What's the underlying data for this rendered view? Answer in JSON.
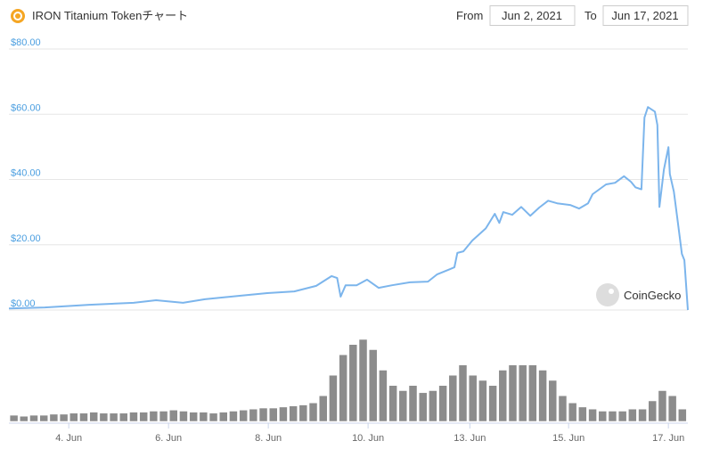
{
  "chart_data": [
    {
      "type": "line",
      "title": "IRON Titanium Tokenチャート",
      "color": "#7cb5ec",
      "x": [
        2.8,
        3.52,
        4.41,
        5.3,
        5.75,
        6.29,
        6.73,
        7.45,
        7.98,
        8.52,
        8.96,
        9.27,
        9.38,
        9.45,
        9.55,
        9.77,
        9.98,
        10.21,
        10.48,
        10.84,
        11.2,
        11.38,
        11.64,
        11.73,
        11.79,
        11.91,
        12.09,
        12.36,
        12.54,
        12.63,
        12.71,
        12.89,
        13.07,
        13.25,
        13.43,
        13.61,
        13.79,
        14.05,
        14.23,
        14.41,
        14.5,
        14.77,
        14.95,
        15.13,
        15.27,
        15.36,
        15.48,
        15.54,
        15.61,
        15.75,
        15.8,
        15.84,
        15.93,
        16.02,
        16.05,
        16.13,
        16.2,
        16.29,
        16.34,
        16.41
      ],
      "values": [
        0.5,
        0.8,
        1.6,
        2.2,
        3.0,
        2.2,
        3.3,
        4.4,
        5.2,
        5.7,
        7.4,
        10.4,
        9.8,
        4.1,
        7.6,
        7.6,
        9.3,
        6.8,
        7.6,
        8.5,
        8.7,
        10.9,
        12.5,
        13.1,
        17.5,
        18.0,
        21.3,
        25.0,
        29.5,
        26.7,
        30.0,
        29.2,
        31.6,
        28.9,
        31.4,
        33.5,
        32.7,
        32.2,
        31.1,
        32.7,
        35.5,
        38.5,
        39.0,
        41.0,
        39.3,
        37.6,
        37.0,
        59.0,
        62.2,
        60.8,
        56.7,
        31.6,
        43.0,
        49.9,
        41.7,
        36.3,
        28.1,
        17.2,
        15.3,
        0
      ],
      "xlim": [
        2.8,
        16.41
      ],
      "ylim": [
        0,
        80
      ],
      "yticks": [
        {
          "value": 0,
          "label": "$0.00"
        },
        {
          "value": 20,
          "label": "$20.00"
        },
        {
          "value": 40,
          "label": "$40.00"
        },
        {
          "value": 60,
          "label": "$60.00"
        },
        {
          "value": 80,
          "label": "$80.00"
        }
      ],
      "grid": true
    },
    {
      "type": "bar",
      "color": "#8c8c8c",
      "x": [
        2.9,
        3.1,
        3.3,
        3.5,
        3.7,
        3.9,
        4.1,
        4.3,
        4.5,
        4.7,
        4.9,
        5.1,
        5.3,
        5.5,
        5.7,
        5.9,
        6.1,
        6.3,
        6.5,
        6.7,
        6.9,
        7.1,
        7.3,
        7.5,
        7.7,
        7.9,
        8.1,
        8.3,
        8.5,
        8.7,
        8.9,
        9.1,
        9.3,
        9.5,
        9.7,
        9.9,
        10.1,
        10.3,
        10.5,
        10.7,
        10.9,
        11.1,
        11.3,
        11.5,
        11.7,
        11.9,
        12.1,
        12.3,
        12.5,
        12.7,
        12.9,
        13.1,
        13.3,
        13.5,
        13.7,
        13.9,
        14.1,
        14.3,
        14.5,
        14.7,
        14.9,
        15.1,
        15.3,
        15.5,
        15.7,
        15.9,
        16.1,
        16.3
      ],
      "values": [
        6,
        5,
        6,
        6,
        7,
        7,
        8,
        8,
        9,
        8,
        8,
        8,
        9,
        9,
        10,
        10,
        11,
        10,
        9,
        9,
        8,
        9,
        10,
        11,
        12,
        13,
        13,
        14,
        15,
        16,
        18,
        25,
        45,
        65,
        75,
        80,
        70,
        50,
        35,
        30,
        35,
        28,
        30,
        35,
        45,
        55,
        45,
        40,
        35,
        50,
        55,
        55,
        55,
        50,
        40,
        25,
        18,
        14,
        12,
        10,
        10,
        10,
        12,
        12,
        20,
        30,
        25,
        12
      ],
      "xlim": [
        2.8,
        16.41
      ],
      "ylim": [
        0,
        100
      ],
      "xticks": [
        {
          "value": 4,
          "label": "4. Jun"
        },
        {
          "value": 6,
          "label": "6. Jun"
        },
        {
          "value": 8,
          "label": "8. Jun"
        },
        {
          "value": 10,
          "label": "10. Jun"
        },
        {
          "value": 12.04,
          "label": "13. Jun"
        },
        {
          "value": 14.02,
          "label": "15. Jun"
        },
        {
          "value": 16.02,
          "label": "17. Jun"
        }
      ]
    }
  ],
  "date_range": {
    "from_label": "From",
    "from": "Jun 2, 2021",
    "to_label": "To",
    "to": "Jun 17, 2021"
  },
  "watermark": "CoinGecko"
}
